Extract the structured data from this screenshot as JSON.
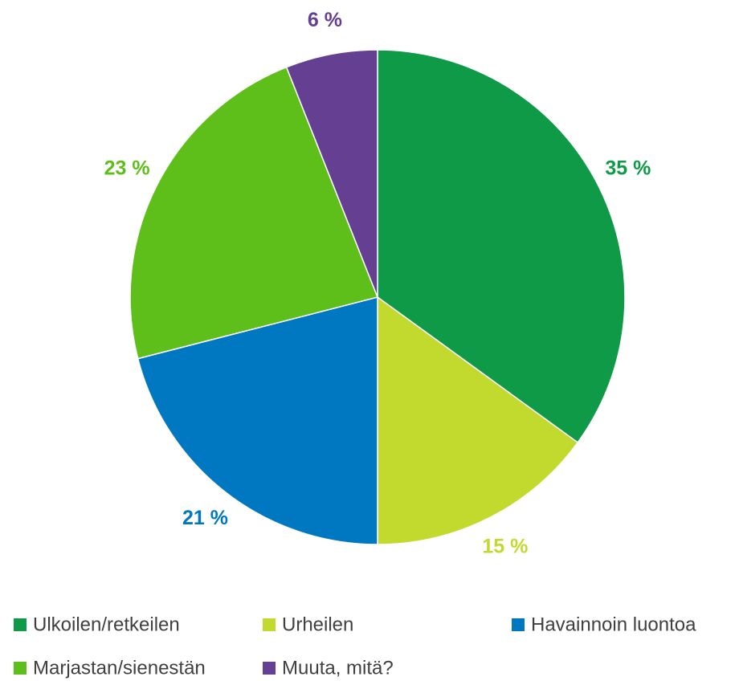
{
  "chart_data": {
    "type": "pie",
    "categories": [
      "Ulkoilen/retkeilen",
      "Urheilen",
      "Havainnoin luontoa",
      "Marjastan/sienestän",
      "Muuta, mitä?"
    ],
    "values": [
      35,
      15,
      21,
      23,
      6
    ],
    "value_labels": [
      "35 %",
      "15 %",
      "21 %",
      "23 %",
      "6 %"
    ],
    "colors": [
      "#0e9a47",
      "#c2d92e",
      "#0078c1",
      "#5fbf1a",
      "#643f92"
    ],
    "legend": "bottom"
  }
}
